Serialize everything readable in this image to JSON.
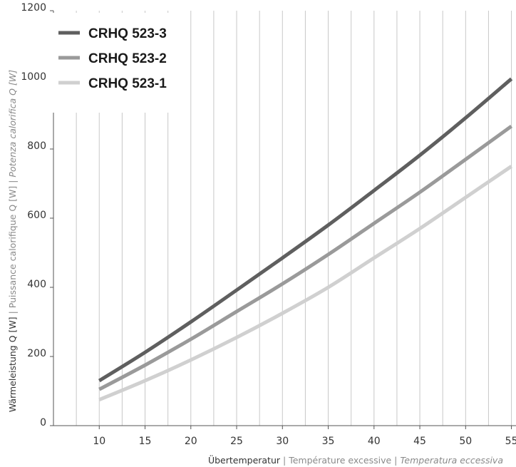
{
  "chart_data": {
    "type": "line",
    "xlabel": {
      "de": "Übertemperatur",
      "fr": "Température excessive",
      "it": "Temperatura eccessiva"
    },
    "ylabel": {
      "de": "Wärmeleistung Q [W]",
      "fr": "Puissance calorifique Q [W]",
      "it": "Potenza calorifica Q [W]"
    },
    "separator": " | ",
    "xlim": [
      5,
      55.5
    ],
    "ylim": [
      0,
      1200
    ],
    "x_ticks": [
      "10",
      "15",
      "20",
      "25",
      "30",
      "35",
      "40",
      "45",
      "50",
      "55"
    ],
    "y_ticks": [
      "0",
      "200",
      "400",
      "600",
      "800",
      "1000",
      "1200"
    ],
    "grid": {
      "vertical": true,
      "horizontal": false
    },
    "legend_position": "top-left",
    "x": [
      10,
      15,
      20,
      25,
      30,
      35,
      40,
      45,
      50,
      55
    ],
    "series": [
      {
        "name": "CRHQ 523-3",
        "color": "#5f5f5f",
        "values": [
          130,
          212,
          300,
          392,
          485,
          580,
          680,
          782,
          890,
          1003
        ]
      },
      {
        "name": "CRHQ 523-2",
        "color": "#9a9a9a",
        "values": [
          105,
          175,
          250,
          330,
          410,
          495,
          585,
          675,
          770,
          866
        ]
      },
      {
        "name": "CRHQ 523-1",
        "color": "#d0d0d0",
        "values": [
          75,
          130,
          190,
          255,
          325,
          400,
          485,
          570,
          660,
          750
        ]
      }
    ]
  }
}
